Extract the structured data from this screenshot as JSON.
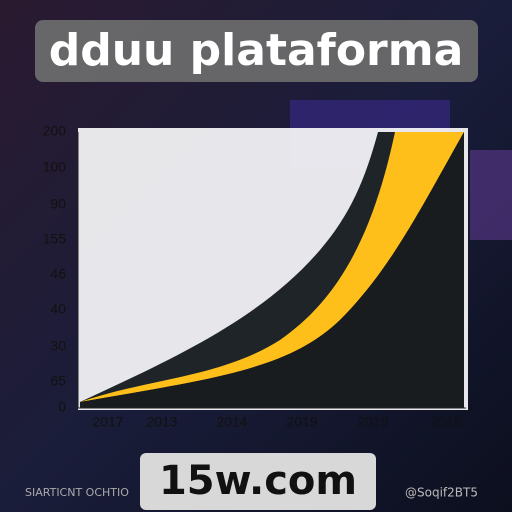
{
  "header": {
    "title": "dduu plataforma"
  },
  "chart": {
    "y_labels": [
      "200",
      "100",
      "90",
      "155",
      "46",
      "40",
      "30",
      "65",
      "0"
    ],
    "x_labels": [
      "2017",
      "2013",
      "2014",
      "2019",
      "2019",
      "2015"
    ]
  },
  "footer": {
    "site": "15w.com",
    "left_text": "SIARTICNT OCHTIO",
    "right_text": "@Soqif2BT5"
  }
}
